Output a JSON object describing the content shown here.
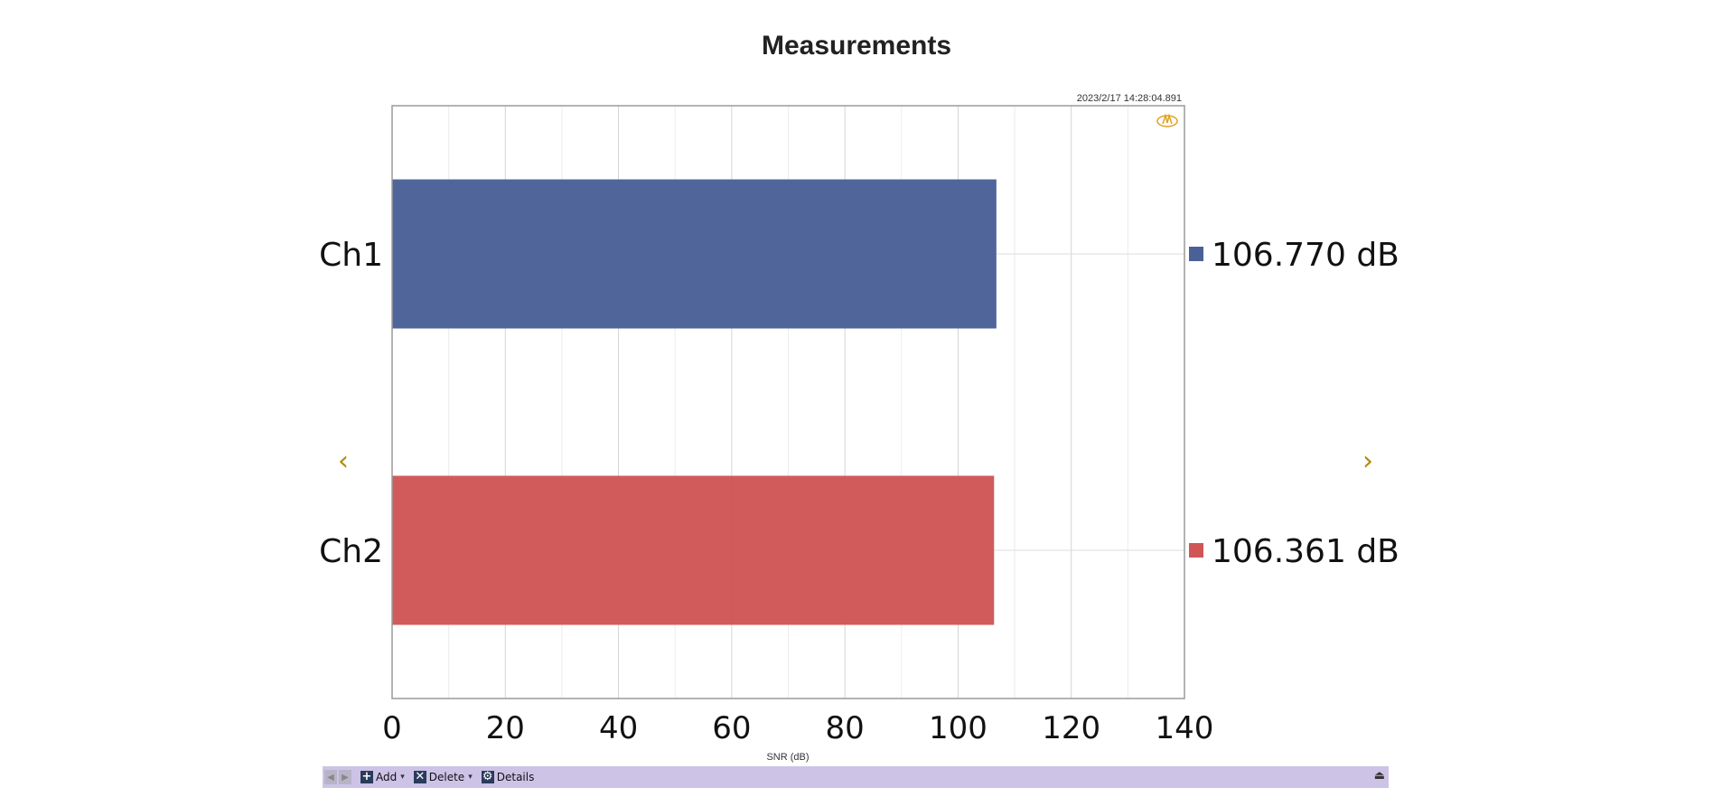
{
  "page": {
    "title": "Measurements",
    "timestamp": "2023/2/17 14:28:04.891"
  },
  "navigation": {
    "prev_icon": "chevron-left-icon",
    "next_icon": "chevron-right-icon"
  },
  "toolbar": {
    "add_label": "Add",
    "delete_label": "Delete",
    "details_label": "Details"
  },
  "chart_data": {
    "type": "bar",
    "orientation": "horizontal",
    "title": "Measurements",
    "xlabel": "SNR (dB)",
    "ylabel": "",
    "xlim": [
      0,
      140
    ],
    "xticks": [
      0,
      20,
      40,
      60,
      80,
      100,
      120,
      140
    ],
    "grid": true,
    "categories": [
      "Ch1",
      "Ch2"
    ],
    "values": [
      106.77,
      106.361
    ],
    "value_labels": [
      "106.770 dB",
      "106.361 dB"
    ],
    "colors": [
      "#4a6198",
      "#d05656"
    ]
  }
}
